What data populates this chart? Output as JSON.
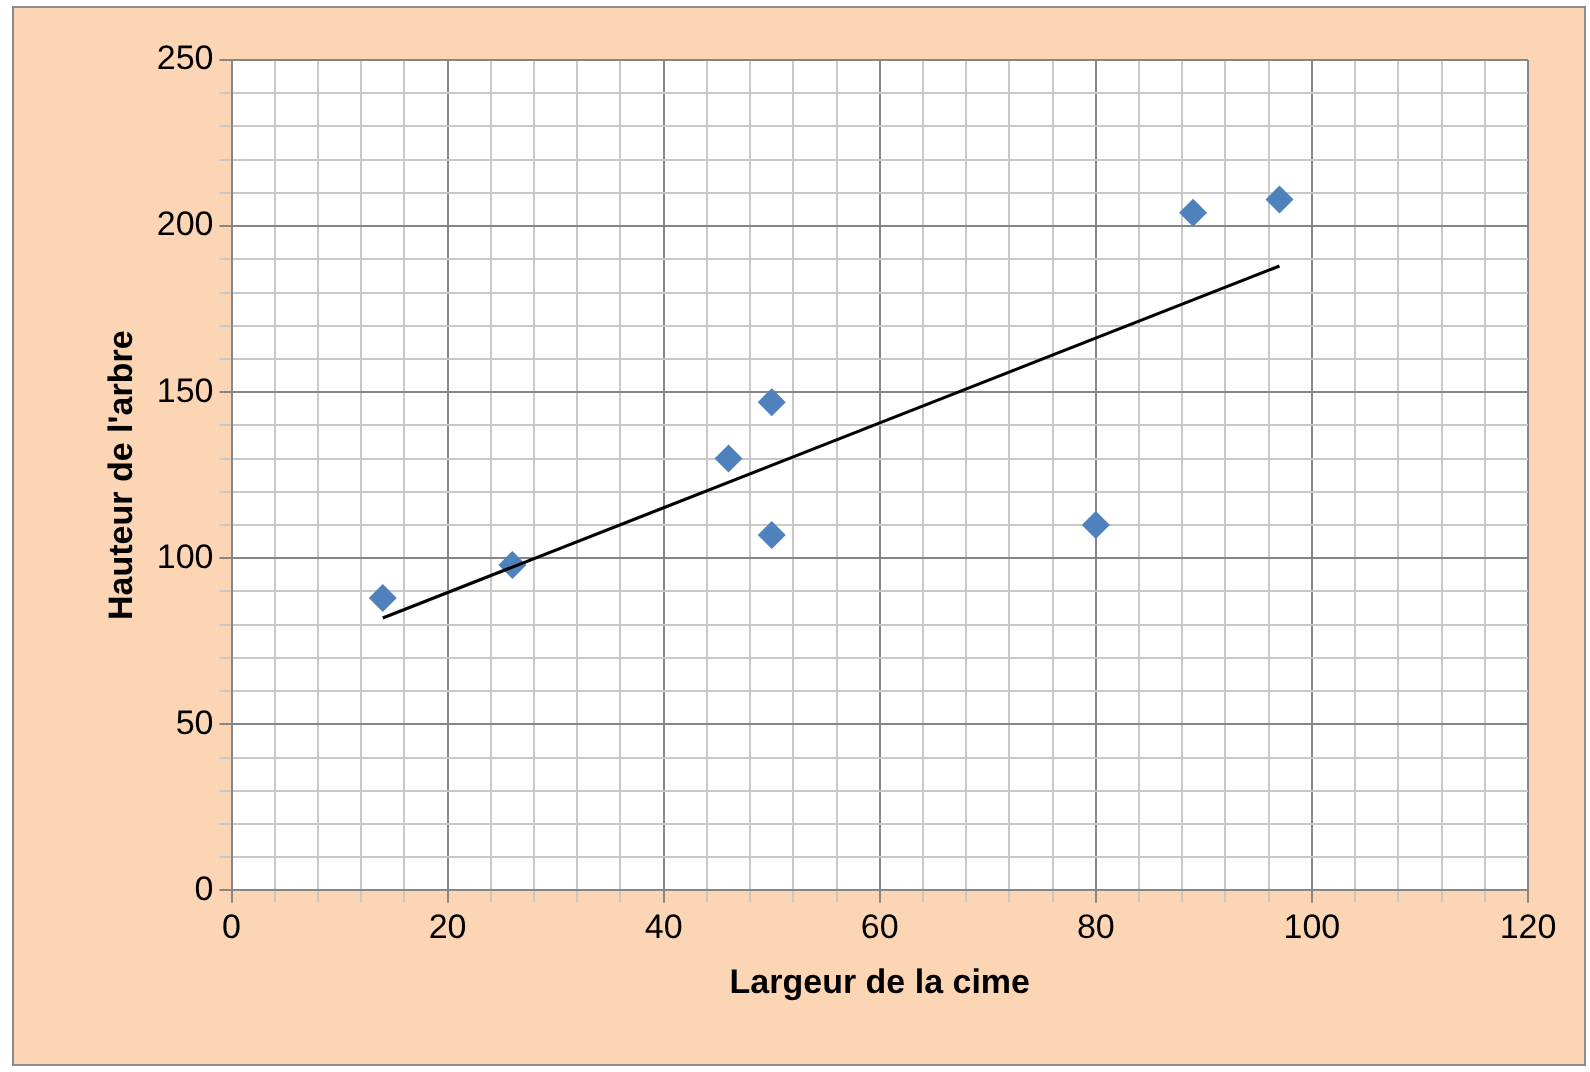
{
  "chart_data": {
    "type": "scatter",
    "xlabel": "Largeur de la cime",
    "ylabel": "Hauteur de l'arbre",
    "xlim": [
      0,
      120
    ],
    "ylim": [
      0,
      250
    ],
    "xticks": [
      0,
      {
        "value": 4,
        "label": null
      },
      {
        "value": 8,
        "label": null
      },
      {
        "value": 12,
        "label": null
      },
      {
        "value": 16,
        "label": null
      },
      20,
      {
        "value": 24,
        "label": null
      },
      {
        "value": 28,
        "label": null
      },
      {
        "value": 32,
        "label": null
      },
      {
        "value": 36,
        "label": null
      },
      40,
      {
        "value": 44,
        "label": null
      },
      {
        "value": 48,
        "label": null
      },
      {
        "value": 52,
        "label": null
      },
      {
        "value": 56,
        "label": null
      },
      60,
      {
        "value": 64,
        "label": null
      },
      {
        "value": 68,
        "label": null
      },
      {
        "value": 72,
        "label": null
      },
      {
        "value": 76,
        "label": null
      },
      80,
      {
        "value": 84,
        "label": null
      },
      {
        "value": 88,
        "label": null
      },
      {
        "value": 92,
        "label": null
      },
      {
        "value": 96,
        "label": null
      },
      100,
      {
        "value": 104,
        "label": null
      },
      {
        "value": 108,
        "label": null
      },
      {
        "value": 112,
        "label": null
      },
      {
        "value": 116,
        "label": null
      },
      120
    ],
    "yticks": [
      0,
      {
        "value": 10,
        "label": null
      },
      {
        "value": 20,
        "label": null
      },
      {
        "value": 30,
        "label": null
      },
      {
        "value": 40,
        "label": null
      },
      50,
      {
        "value": 60,
        "label": null
      },
      {
        "value": 70,
        "label": null
      },
      {
        "value": 80,
        "label": null
      },
      {
        "value": 90,
        "label": null
      },
      100,
      {
        "value": 110,
        "label": null
      },
      {
        "value": 120,
        "label": null
      },
      {
        "value": 130,
        "label": null
      },
      {
        "value": 140,
        "label": null
      },
      150,
      {
        "value": 160,
        "label": null
      },
      {
        "value": 170,
        "label": null
      },
      {
        "value": 180,
        "label": null
      },
      {
        "value": 190,
        "label": null
      },
      200,
      {
        "value": 210,
        "label": null
      },
      {
        "value": 220,
        "label": null
      },
      {
        "value": 230,
        "label": null
      },
      {
        "value": 240,
        "label": null
      },
      250
    ],
    "grid": true,
    "legend": false,
    "marker": "diamond",
    "series": [
      {
        "color": "#4f81bd",
        "x": [
          14,
          26,
          46,
          50,
          50,
          80,
          89,
          97
        ],
        "values": [
          88,
          98,
          130,
          147,
          107,
          110,
          204,
          208
        ]
      },
      {
        "type": "line",
        "color": "#000000",
        "marker": "none",
        "x": [
          14,
          97
        ],
        "values": [
          82,
          188
        ]
      }
    ]
  }
}
